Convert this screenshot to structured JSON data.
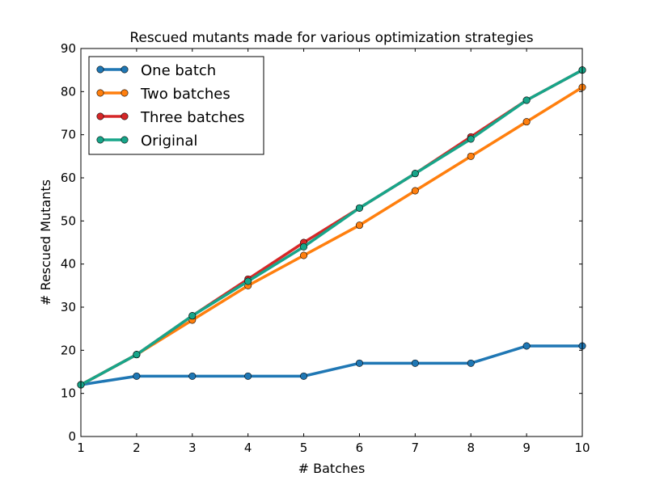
{
  "chart_data": {
    "type": "line",
    "title": "Rescued mutants made for various optimization strategies",
    "xlabel": "# Batches",
    "ylabel": "# Rescued Mutants",
    "xlim": [
      1,
      10
    ],
    "ylim": [
      0,
      90
    ],
    "xticks": [
      1,
      2,
      3,
      4,
      5,
      6,
      7,
      8,
      9,
      10
    ],
    "yticks": [
      0,
      10,
      20,
      30,
      40,
      50,
      60,
      70,
      80,
      90
    ],
    "grid": false,
    "legend_position": "top-left",
    "x": [
      1,
      2,
      3,
      4,
      5,
      6,
      7,
      8,
      9,
      10
    ],
    "series": [
      {
        "name": "One batch",
        "color": "#1f77b4",
        "values": [
          12,
          14,
          14,
          14,
          14,
          17,
          17,
          17,
          21,
          21
        ]
      },
      {
        "name": "Two batches",
        "color": "#ff7f0e",
        "values": [
          12,
          19,
          27,
          35,
          42,
          49,
          57,
          65,
          73,
          81
        ]
      },
      {
        "name": "Three batches",
        "color": "#d62728",
        "values": [
          12,
          19,
          28,
          36.5,
          45,
          53,
          61,
          69.5,
          78,
          85
        ]
      },
      {
        "name": "Original",
        "color": "#17a589",
        "values": [
          12,
          19,
          28,
          36,
          44,
          53,
          61,
          69,
          78,
          85
        ]
      }
    ]
  }
}
